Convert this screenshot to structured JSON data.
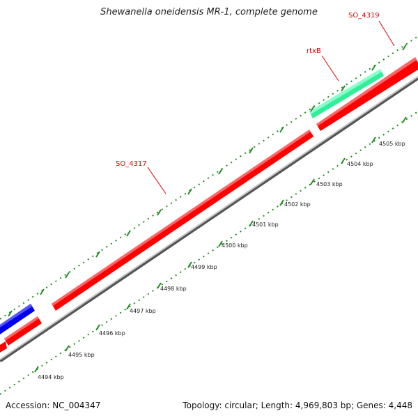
{
  "title": "Shewanella oneidensis MR-1, complete genome",
  "accession": "Accession: NC_004347",
  "summary": "Topology: circular; Length: 4,969,803 bp; Genes: 4,448",
  "colors": {
    "forward_cds": "#ff0000",
    "reverse_cds": "#0000ee",
    "rna": "#33ee99",
    "tick": "#228b22",
    "backbone": "#888888",
    "label": "#dd0000"
  },
  "gene_labels": [
    {
      "name": "SO_4319"
    },
    {
      "name": "rtxB"
    },
    {
      "name": "SO_4317"
    }
  ],
  "kbp_labels": [
    "4494 kbp",
    "4495 kbp",
    "4496 kbp",
    "4497 kbp",
    "4498 kbp",
    "4499 kbp",
    "4500 kbp",
    "4501 kbp",
    "4502 kbp",
    "4503 kbp",
    "4504 kbp",
    "4505 kbp"
  ]
}
